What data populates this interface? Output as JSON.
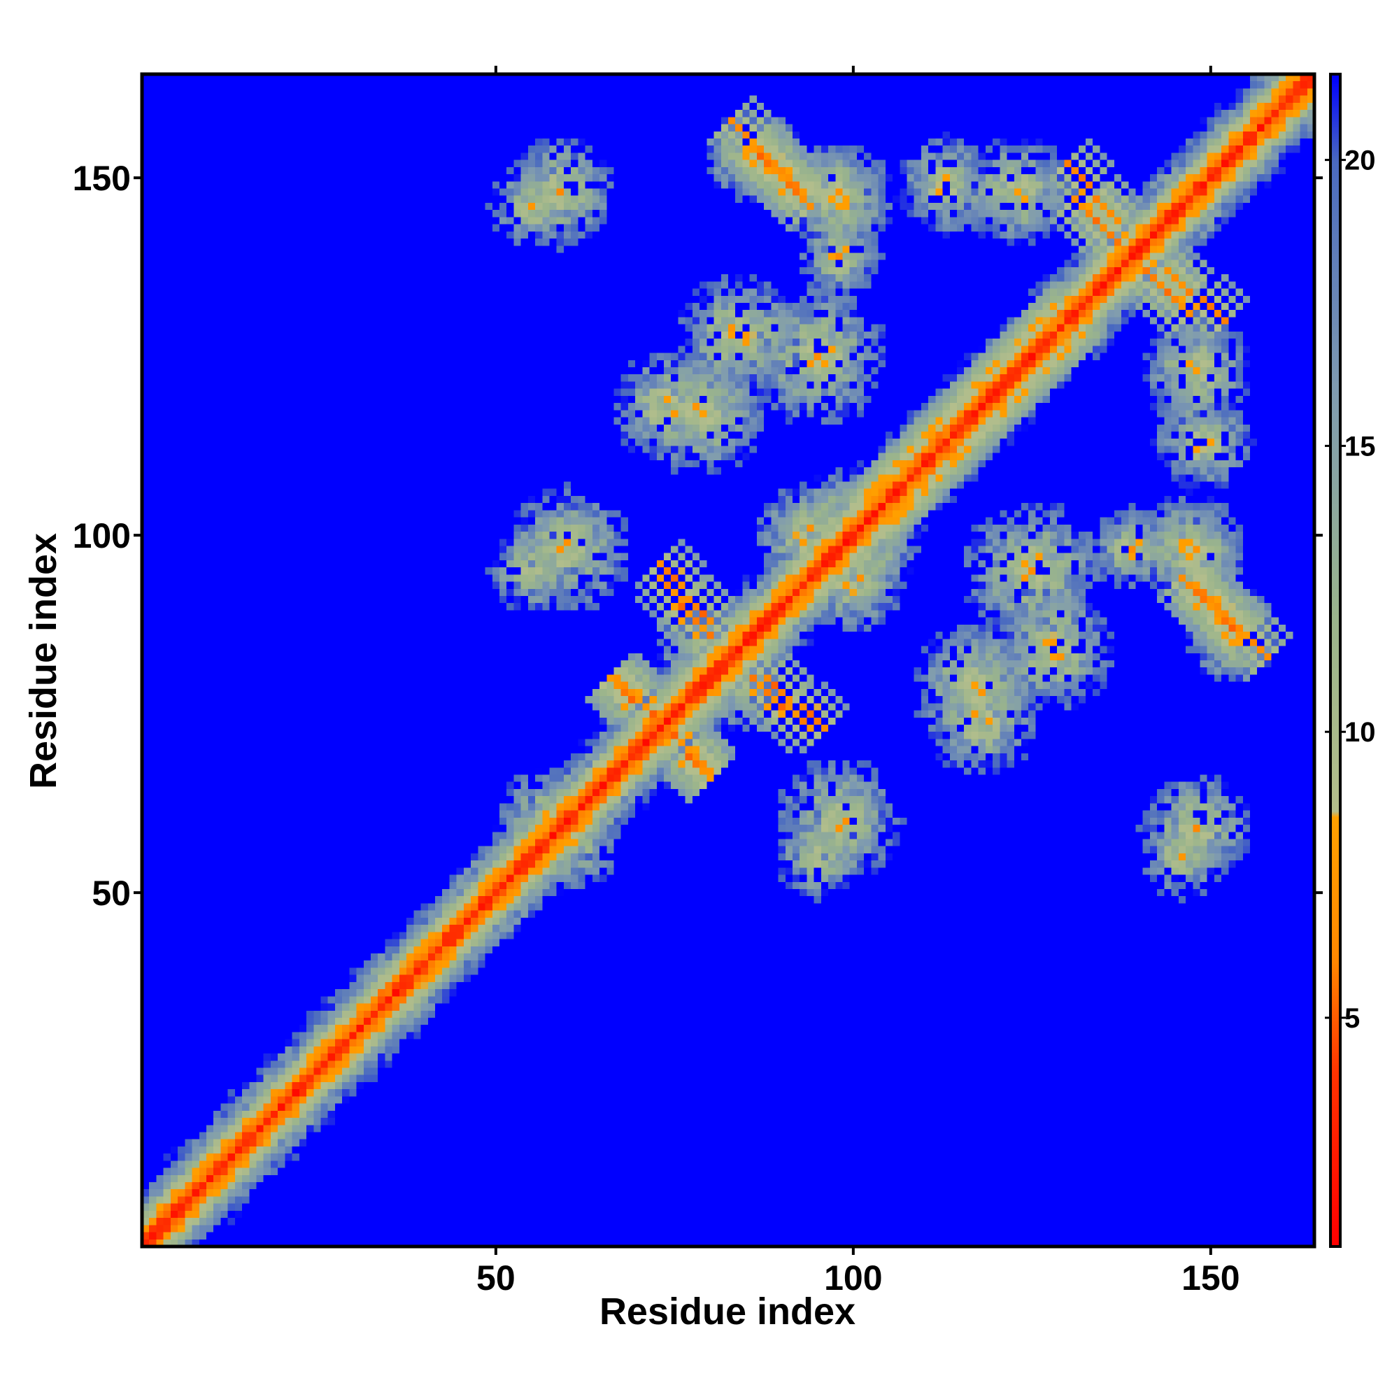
{
  "chart_data": {
    "type": "heatmap",
    "title": "",
    "xlabel": "Residue index",
    "ylabel": "Residue index",
    "x_range": [
      1,
      164
    ],
    "y_range": [
      1,
      164
    ],
    "x_ticks": [
      50,
      100,
      150
    ],
    "y_ticks": [
      50,
      100,
      150
    ],
    "x_tick_labels": [
      "50",
      "100",
      "150"
    ],
    "y_tick_labels": [
      "50",
      "100",
      "150"
    ],
    "colorbar": {
      "range": [
        1,
        21.5
      ],
      "ticks": [
        5,
        10,
        15,
        20
      ],
      "tick_labels": [
        "5",
        "10",
        "15",
        "20"
      ],
      "colors": [
        {
          "value": 1,
          "color": "#ff0000"
        },
        {
          "value": 4,
          "color": "#ff3300"
        },
        {
          "value": 6,
          "color": "#ff8800"
        },
        {
          "value": 8.5,
          "color": "#ffa000"
        },
        {
          "value": 8.6,
          "color": "#b4be8c"
        },
        {
          "value": 12,
          "color": "#9ab48c"
        },
        {
          "value": 16,
          "color": "#7f9bb0"
        },
        {
          "value": 20,
          "color": "#4a6ac0"
        },
        {
          "value": 21.5,
          "color": "#0000ff"
        }
      ],
      "background_color": "#0000ff"
    },
    "value_meaning": "pairwise residue distance",
    "diagonal": "minimum distance along i = j",
    "anti_diagonal_contacts": [
      {
        "i_range": [
          83,
          93
        ],
        "j_range": [
          148,
          158
        ]
      },
      {
        "i_range": [
          130,
          137
        ],
        "j_range": [
          144,
          152
        ]
      },
      {
        "i_range": [
          138,
          147
        ],
        "j_range": [
          131,
          140
        ]
      },
      {
        "i_range": [
          146,
          154
        ],
        "j_range": [
          86,
          94
        ]
      },
      {
        "i_range": [
          73,
          80
        ],
        "j_range": [
          88,
          96
        ]
      },
      {
        "i_range": [
          86,
          94
        ],
        "j_range": [
          73,
          80
        ]
      },
      {
        "i_range": [
          67,
          73
        ],
        "j_range": [
          74,
          80
        ]
      },
      {
        "i_range": [
          74,
          80
        ],
        "j_range": [
          66,
          73
        ]
      }
    ],
    "parallel_bands": [
      {
        "offset": 4,
        "i_range": [
          100,
          128
        ]
      },
      {
        "offset": -4,
        "i_range": [
          100,
          128
        ]
      }
    ],
    "contact_clusters": [
      {
        "center": [
          59,
          148
        ],
        "size": 8
      },
      {
        "center": [
          97,
          148
        ],
        "size": 7
      },
      {
        "center": [
          113,
          149
        ],
        "size": 7
      },
      {
        "center": [
          94,
          100
        ],
        "size": 8
      },
      {
        "center": [
          60,
          98
        ],
        "size": 9
      },
      {
        "center": [
          101,
          98
        ],
        "size": 8
      },
      {
        "center": [
          95,
          125
        ],
        "size": 10
      },
      {
        "center": [
          74,
          118
        ],
        "size": 8
      },
      {
        "center": [
          117,
          79
        ],
        "size": 9
      },
      {
        "center": [
          147,
          98
        ],
        "size": 8
      },
      {
        "center": [
          139,
          98
        ],
        "size": 6
      },
      {
        "center": [
          148,
          123
        ],
        "size": 8
      },
      {
        "center": [
          153,
          86
        ],
        "size": 7
      },
      {
        "center": [
          95,
          55
        ],
        "size": 6
      },
      {
        "center": [
          146,
          55
        ],
        "size": 6
      },
      {
        "center": [
          58,
          60
        ],
        "size": 8
      },
      {
        "center": [
          128,
          84
        ],
        "size": 9
      },
      {
        "center": [
          82,
          80
        ],
        "size": 8
      }
    ],
    "grid": false,
    "legend": "colorbar-right"
  }
}
